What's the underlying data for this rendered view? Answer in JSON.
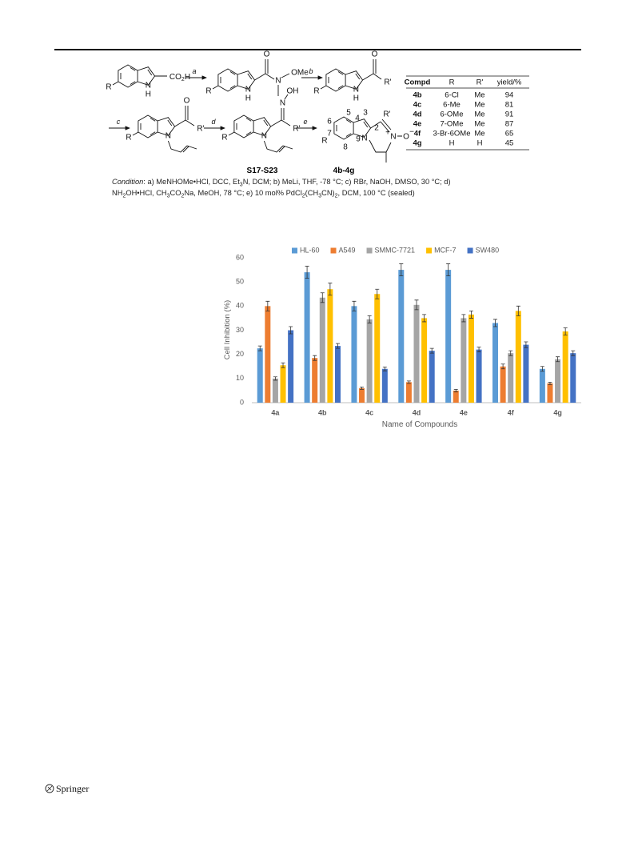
{
  "scheme": {
    "reagents": [
      "a",
      "b",
      "c",
      "d",
      "e"
    ],
    "structures": [
      {
        "labels": [
          "CO",
          "2",
          "H",
          "R",
          "N",
          "H"
        ]
      },
      {
        "labels": [
          "O",
          "N",
          "OMe",
          "R",
          "N",
          "H"
        ]
      },
      {
        "labels": [
          "O",
          "R'",
          "R",
          "N",
          "H"
        ]
      },
      {
        "labels": [
          "O",
          "R'",
          "R",
          "N"
        ]
      },
      {
        "labels": [
          "OH",
          "N",
          "R'",
          "R",
          "N"
        ],
        "name": "S17-S23"
      },
      {
        "labels": [
          "5",
          "6",
          "4",
          "3",
          "2",
          "R'",
          "7",
          "R",
          "8",
          "9",
          "N",
          "+",
          "N",
          "O",
          "−"
        ],
        "name": "4b-4g"
      }
    ]
  },
  "table": {
    "header": [
      "Compd",
      "R",
      "R'",
      "yield/%"
    ],
    "rows": [
      [
        "4b",
        "6-Cl",
        "Me",
        "94"
      ],
      [
        "4c",
        "6-Me",
        "Me",
        "81"
      ],
      [
        "4d",
        "6-OMe",
        "Me",
        "91"
      ],
      [
        "4e",
        "7-OMe",
        "Me",
        "87"
      ],
      [
        "4f",
        "3-Br-6OMe",
        "Me",
        "65"
      ],
      [
        "4g",
        "H",
        "H",
        "45"
      ]
    ]
  },
  "condition": {
    "line1": [
      "Condition",
      ": a) MeNHOMe•HCl, DCC, Et",
      "3",
      "N, DCM; b) MeLi, THF, -78 °C; c) RBr, NaOH, DMSO, 30 °C; d)"
    ],
    "line2": [
      "NH",
      "2",
      "OH•HCl, CH",
      "3",
      "CO",
      "2",
      "Na, MeOH, 78 °C; e) 10 mol% PdCl",
      "2",
      "(CH",
      "3",
      "CN)",
      "2",
      ", DCM, 100 °C (sealed)"
    ]
  },
  "chart_data": {
    "type": "bar",
    "x_label": "Name of Compounds",
    "y_label": "Cell Inhibition (%)",
    "categories": [
      "4a",
      "4b",
      "4c",
      "4d",
      "4e",
      "4f",
      "4g"
    ],
    "series": [
      {
        "name": "HL-60",
        "color": "#5b9bd5",
        "values": [
          22.5,
          54,
          40,
          55,
          55,
          33,
          14
        ],
        "errors": [
          1,
          2.5,
          2,
          2.5,
          2.5,
          1.5,
          1
        ]
      },
      {
        "name": "A549",
        "color": "#ed7d31",
        "values": [
          40,
          18.5,
          6,
          8.5,
          5,
          15,
          8
        ],
        "errors": [
          2,
          1,
          0.5,
          0.5,
          0.5,
          1,
          0.5
        ]
      },
      {
        "name": "SMMC-7721",
        "color": "#a5a5a5",
        "values": [
          10,
          43.5,
          34.5,
          40.5,
          35,
          20.5,
          18
        ],
        "errors": [
          0.7,
          2,
          1.5,
          2,
          1.5,
          1,
          1
        ]
      },
      {
        "name": "MCF-7",
        "color": "#ffc000",
        "values": [
          15.5,
          47,
          45,
          35,
          36.5,
          38,
          29.5
        ],
        "errors": [
          1,
          2.5,
          2,
          1.5,
          1.5,
          2,
          1.5
        ]
      },
      {
        "name": "SW480",
        "color": "#4472c4",
        "values": [
          30,
          23.5,
          14,
          21.5,
          22,
          24,
          20.5
        ],
        "errors": [
          1.5,
          1,
          0.8,
          1,
          1,
          1.2,
          1
        ]
      }
    ],
    "ylim": [
      0,
      60
    ],
    "yticks": [
      0,
      10,
      20,
      30,
      40,
      50,
      60
    ],
    "grid": false,
    "legend": "top"
  },
  "footer": {
    "publisher": "Springer"
  }
}
